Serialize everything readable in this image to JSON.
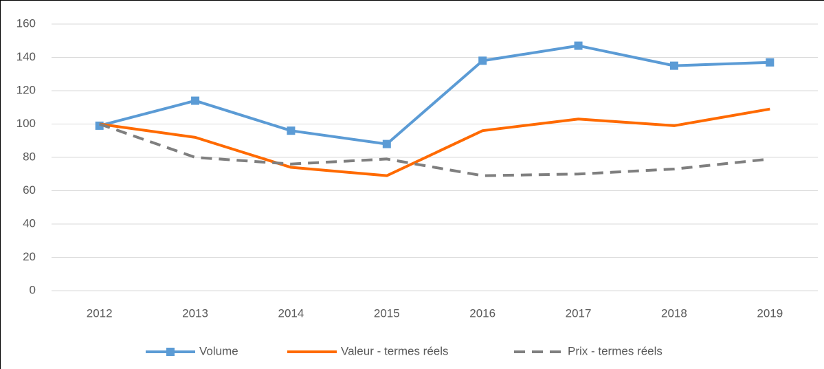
{
  "chart_data": {
    "type": "line",
    "categories": [
      "2012",
      "2013",
      "2014",
      "2015",
      "2016",
      "2017",
      "2018",
      "2019"
    ],
    "series": [
      {
        "name": "Volume",
        "color": "#5b9bd5",
        "marker": "square",
        "dashed": false,
        "values": [
          99,
          114,
          96,
          88,
          138,
          147,
          135,
          137
        ]
      },
      {
        "name": "Valeur - termes réels",
        "color": "#ff6a00",
        "marker": "none",
        "dashed": false,
        "values": [
          100,
          92,
          74,
          69,
          96,
          103,
          99,
          109
        ]
      },
      {
        "name": "Prix - termes réels",
        "color": "#7f7f7f",
        "marker": "none",
        "dashed": true,
        "values": [
          100,
          80,
          76,
          79,
          69,
          70,
          73,
          79
        ]
      }
    ],
    "ylim": [
      0,
      160
    ],
    "yticks": [
      0,
      20,
      40,
      60,
      80,
      100,
      120,
      140,
      160
    ],
    "grid": true,
    "legend": "bottom"
  }
}
